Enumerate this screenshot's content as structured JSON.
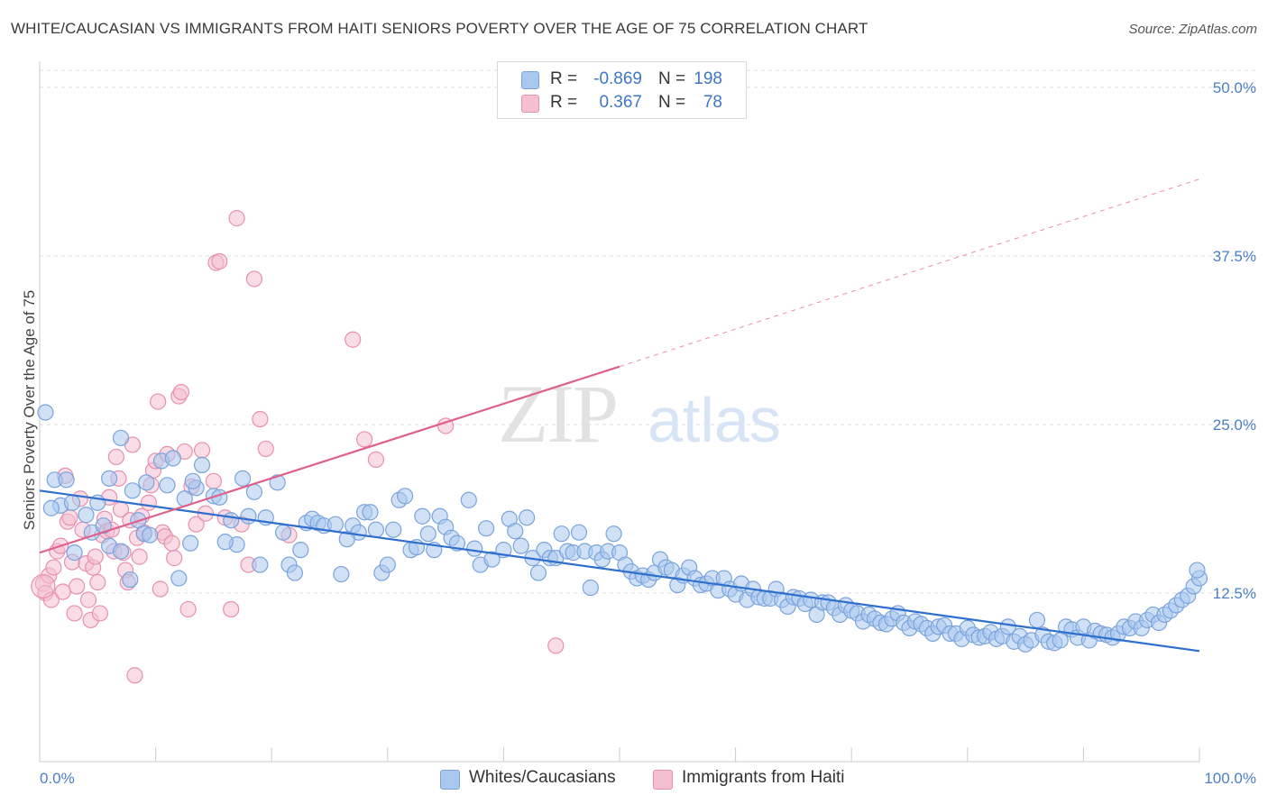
{
  "title": "WHITE/CAUCASIAN VS IMMIGRANTS FROM HAITI SENIORS POVERTY OVER THE AGE OF 75 CORRELATION CHART",
  "source": "Source: ZipAtlas.com",
  "watermark": {
    "zip": "ZIP",
    "atlas": "atlas"
  },
  "colors": {
    "blue_fill": "#aac8ef",
    "blue_stroke": "#7aa3dc",
    "blue_line": "#2e6fce",
    "pink_fill": "#f4bfd1",
    "pink_stroke": "#e890ae",
    "pink_line": "#e0608c",
    "tick_text": "#4a7fc8",
    "grid": "#dddddd"
  },
  "legend": {
    "rows": [
      {
        "r_label": "R =",
        "r_value": "-0.869",
        "n_label": "N =",
        "n_value": "198"
      },
      {
        "r_label": "R =",
        "r_value": "0.367",
        "n_label": "N =",
        "n_value": "78"
      }
    ]
  },
  "bottom_legend": {
    "series1": "Whites/Caucasians",
    "series2": "Immigrants from Haiti"
  },
  "chart_data": {
    "type": "scatter",
    "title": "WHITE/CAUCASIAN VS IMMIGRANTS FROM HAITI SENIORS POVERTY OVER THE AGE OF 75 CORRELATION CHART",
    "xlabel": "",
    "ylabel": "Seniors Poverty Over the Age of 75",
    "xlim": [
      0,
      100
    ],
    "ylim": [
      0,
      50
    ],
    "x_tick_labels": [
      "0.0%",
      "100.0%"
    ],
    "y_ticks": [
      12.5,
      25.0,
      37.5,
      50.0
    ],
    "y_tick_labels": [
      "12.5%",
      "25.0%",
      "37.5%",
      "50.0%"
    ],
    "grid": true,
    "series": [
      {
        "name": "Whites/Caucasians",
        "r": -0.869,
        "n": 198,
        "trend": {
          "x0": 0,
          "y0": 20.1,
          "x1": 100,
          "y1": 8.2
        },
        "points": [
          [
            0.5,
            25.9
          ],
          [
            1.3,
            20.9
          ],
          [
            2.3,
            20.9
          ],
          [
            1.8,
            19.0
          ],
          [
            2.8,
            19.2
          ],
          [
            4.0,
            18.3
          ],
          [
            3.0,
            15.5
          ],
          [
            4.5,
            17.0
          ],
          [
            5.5,
            17.5
          ],
          [
            6.0,
            16.0
          ],
          [
            7.0,
            15.6
          ],
          [
            5.0,
            19.2
          ],
          [
            6.0,
            21.0
          ],
          [
            7.0,
            24.0
          ],
          [
            8.0,
            20.1
          ],
          [
            8.5,
            17.9
          ],
          [
            9.0,
            16.9
          ],
          [
            7.8,
            13.5
          ],
          [
            9.5,
            16.8
          ],
          [
            10.5,
            22.3
          ],
          [
            11.0,
            20.5
          ],
          [
            11.5,
            22.5
          ],
          [
            12.0,
            13.6
          ],
          [
            12.5,
            19.5
          ],
          [
            13.0,
            16.2
          ],
          [
            13.5,
            20.3
          ],
          [
            13.2,
            20.8
          ],
          [
            14.0,
            22.0
          ],
          [
            15.0,
            19.7
          ],
          [
            15.5,
            19.6
          ],
          [
            16.5,
            17.9
          ],
          [
            17.0,
            16.1
          ],
          [
            17.5,
            21.0
          ],
          [
            18.0,
            18.2
          ],
          [
            18.5,
            20.0
          ],
          [
            19.0,
            14.6
          ],
          [
            19.5,
            18.1
          ],
          [
            20.5,
            20.7
          ],
          [
            21.0,
            17.0
          ],
          [
            21.5,
            14.6
          ],
          [
            22.0,
            14.0
          ],
          [
            22.5,
            15.7
          ],
          [
            23.0,
            17.7
          ],
          [
            23.5,
            18.0
          ],
          [
            24.0,
            17.7
          ],
          [
            24.5,
            17.5
          ],
          [
            25.5,
            17.6
          ],
          [
            26.0,
            13.9
          ],
          [
            27.0,
            17.5
          ],
          [
            27.5,
            17.0
          ],
          [
            28.0,
            18.5
          ],
          [
            28.5,
            18.5
          ],
          [
            29.0,
            17.2
          ],
          [
            29.5,
            14.0
          ],
          [
            30.0,
            14.6
          ],
          [
            30.5,
            17.2
          ],
          [
            31.0,
            19.4
          ],
          [
            31.5,
            19.7
          ],
          [
            32.0,
            15.7
          ],
          [
            32.5,
            15.9
          ],
          [
            33.0,
            18.2
          ],
          [
            33.5,
            16.9
          ],
          [
            34.0,
            15.7
          ],
          [
            34.5,
            18.2
          ],
          [
            35.0,
            17.4
          ],
          [
            35.5,
            16.6
          ],
          [
            36.0,
            16.2
          ],
          [
            37.0,
            19.4
          ],
          [
            37.5,
            15.8
          ],
          [
            38.0,
            14.6
          ],
          [
            38.5,
            17.3
          ],
          [
            39.0,
            15.0
          ],
          [
            40.0,
            15.7
          ],
          [
            40.5,
            18.0
          ],
          [
            41.0,
            17.1
          ],
          [
            41.5,
            16.0
          ],
          [
            42.0,
            18.1
          ],
          [
            42.5,
            15.1
          ],
          [
            43.0,
            14.0
          ],
          [
            43.5,
            15.7
          ],
          [
            44.0,
            15.1
          ],
          [
            44.5,
            15.1
          ],
          [
            45.0,
            16.9
          ],
          [
            45.5,
            15.6
          ],
          [
            46.0,
            15.5
          ],
          [
            46.5,
            17.0
          ],
          [
            47.0,
            15.6
          ],
          [
            47.5,
            12.9
          ],
          [
            48.0,
            15.5
          ],
          [
            48.5,
            15.0
          ],
          [
            49.0,
            15.6
          ],
          [
            49.5,
            16.9
          ],
          [
            50.0,
            15.5
          ],
          [
            50.5,
            14.6
          ],
          [
            51.0,
            14.1
          ],
          [
            51.5,
            13.6
          ],
          [
            52.0,
            13.8
          ],
          [
            52.5,
            13.5
          ],
          [
            53.0,
            14.0
          ],
          [
            53.5,
            15.0
          ],
          [
            54.0,
            14.4
          ],
          [
            54.5,
            14.2
          ],
          [
            55.0,
            13.1
          ],
          [
            55.5,
            13.8
          ],
          [
            56.0,
            14.4
          ],
          [
            56.5,
            13.6
          ],
          [
            57.0,
            13.1
          ],
          [
            57.5,
            13.2
          ],
          [
            58.0,
            13.6
          ],
          [
            58.5,
            12.7
          ],
          [
            59.0,
            13.6
          ],
          [
            59.5,
            12.8
          ],
          [
            60.0,
            12.4
          ],
          [
            60.5,
            13.2
          ],
          [
            61.0,
            12.0
          ],
          [
            61.5,
            12.8
          ],
          [
            62.0,
            12.2
          ],
          [
            62.5,
            12.1
          ],
          [
            63.0,
            12.1
          ],
          [
            63.5,
            12.8
          ],
          [
            64.0,
            12.0
          ],
          [
            64.5,
            11.5
          ],
          [
            65.0,
            12.2
          ],
          [
            65.5,
            12.1
          ],
          [
            66.0,
            11.7
          ],
          [
            66.5,
            12.0
          ],
          [
            67.0,
            10.9
          ],
          [
            67.5,
            11.8
          ],
          [
            68.0,
            11.8
          ],
          [
            68.5,
            11.4
          ],
          [
            69.0,
            10.9
          ],
          [
            69.5,
            11.6
          ],
          [
            70.0,
            11.2
          ],
          [
            70.5,
            11.0
          ],
          [
            71.0,
            10.4
          ],
          [
            71.5,
            10.9
          ],
          [
            72.0,
            10.6
          ],
          [
            72.5,
            10.3
          ],
          [
            73.0,
            10.2
          ],
          [
            73.5,
            10.6
          ],
          [
            74.0,
            11.0
          ],
          [
            74.5,
            10.3
          ],
          [
            75.0,
            9.9
          ],
          [
            75.5,
            10.4
          ],
          [
            76.0,
            10.2
          ],
          [
            76.5,
            9.9
          ],
          [
            77.0,
            9.5
          ],
          [
            77.5,
            10.0
          ],
          [
            78.0,
            10.1
          ],
          [
            78.5,
            9.5
          ],
          [
            79.0,
            9.5
          ],
          [
            79.5,
            9.1
          ],
          [
            80.0,
            9.9
          ],
          [
            80.5,
            9.4
          ],
          [
            81.0,
            9.2
          ],
          [
            81.5,
            9.3
          ],
          [
            82.0,
            9.6
          ],
          [
            82.5,
            9.1
          ],
          [
            83.0,
            9.3
          ],
          [
            83.5,
            10.0
          ],
          [
            84.0,
            8.9
          ],
          [
            84.5,
            9.3
          ],
          [
            85.0,
            8.7
          ],
          [
            85.5,
            9.0
          ],
          [
            86.0,
            10.5
          ],
          [
            86.5,
            9.4
          ],
          [
            87.0,
            8.9
          ],
          [
            87.5,
            8.8
          ],
          [
            88.0,
            9.0
          ],
          [
            88.5,
            10.0
          ],
          [
            89.0,
            9.8
          ],
          [
            89.5,
            9.2
          ],
          [
            90.0,
            10.0
          ],
          [
            90.5,
            9.0
          ],
          [
            91.0,
            9.7
          ],
          [
            91.5,
            9.5
          ],
          [
            92.0,
            9.4
          ],
          [
            92.5,
            9.2
          ],
          [
            93.0,
            9.5
          ],
          [
            93.5,
            10.0
          ],
          [
            94.0,
            9.9
          ],
          [
            94.5,
            10.4
          ],
          [
            95.0,
            9.9
          ],
          [
            95.5,
            10.5
          ],
          [
            96.0,
            10.9
          ],
          [
            96.5,
            10.3
          ],
          [
            97.0,
            10.9
          ],
          [
            97.5,
            11.2
          ],
          [
            98.0,
            11.6
          ],
          [
            98.5,
            12.0
          ],
          [
            99.0,
            12.3
          ],
          [
            99.5,
            13.0
          ],
          [
            100.0,
            13.6
          ],
          [
            99.8,
            14.2
          ],
          [
            1.0,
            18.8
          ],
          [
            9.2,
            20.7
          ],
          [
            16.0,
            16.3
          ],
          [
            26.5,
            16.5
          ]
        ]
      },
      {
        "name": "Immigrants from Haiti",
        "r": 0.367,
        "n": 78,
        "trend": {
          "x0": 0,
          "y0": 15.5,
          "x1": 50,
          "y1": 29.3,
          "dash_x1": 100,
          "dash_y1": 43.2
        },
        "points": [
          [
            0.3,
            13.2
          ],
          [
            0.5,
            12.5
          ],
          [
            0.8,
            13.8
          ],
          [
            1.0,
            12.0
          ],
          [
            1.2,
            14.4
          ],
          [
            1.5,
            15.6
          ],
          [
            1.8,
            16.0
          ],
          [
            2.0,
            12.6
          ],
          [
            2.2,
            21.2
          ],
          [
            2.4,
            17.8
          ],
          [
            2.6,
            18.1
          ],
          [
            2.8,
            14.8
          ],
          [
            3.0,
            11.0
          ],
          [
            3.2,
            13.0
          ],
          [
            3.5,
            19.5
          ],
          [
            3.7,
            17.2
          ],
          [
            4.0,
            14.7
          ],
          [
            4.2,
            12.0
          ],
          [
            4.4,
            10.5
          ],
          [
            4.6,
            14.4
          ],
          [
            4.8,
            15.2
          ],
          [
            5.0,
            13.3
          ],
          [
            5.2,
            11.0
          ],
          [
            5.4,
            16.8
          ],
          [
            5.6,
            18.0
          ],
          [
            5.8,
            17.1
          ],
          [
            6.0,
            19.6
          ],
          [
            6.2,
            17.2
          ],
          [
            6.4,
            15.6
          ],
          [
            6.6,
            22.6
          ],
          [
            6.8,
            21.0
          ],
          [
            7.0,
            18.7
          ],
          [
            7.2,
            15.5
          ],
          [
            7.4,
            14.2
          ],
          [
            7.6,
            13.3
          ],
          [
            7.8,
            17.9
          ],
          [
            8.0,
            23.5
          ],
          [
            8.2,
            6.4
          ],
          [
            8.4,
            16.6
          ],
          [
            8.6,
            15.2
          ],
          [
            8.8,
            18.2
          ],
          [
            9.0,
            17.0
          ],
          [
            9.4,
            19.2
          ],
          [
            9.6,
            20.5
          ],
          [
            9.8,
            21.6
          ],
          [
            10.0,
            22.3
          ],
          [
            10.2,
            26.7
          ],
          [
            10.4,
            12.8
          ],
          [
            10.6,
            17.0
          ],
          [
            10.8,
            16.7
          ],
          [
            11.0,
            22.8
          ],
          [
            11.4,
            16.2
          ],
          [
            11.6,
            15.1
          ],
          [
            12.0,
            27.1
          ],
          [
            12.2,
            27.4
          ],
          [
            12.5,
            23.0
          ],
          [
            12.8,
            11.3
          ],
          [
            13.1,
            20.4
          ],
          [
            13.5,
            17.6
          ],
          [
            14.0,
            23.1
          ],
          [
            14.3,
            18.4
          ],
          [
            15.0,
            20.8
          ],
          [
            15.2,
            37.0
          ],
          [
            15.5,
            37.1
          ],
          [
            16.0,
            18.1
          ],
          [
            16.5,
            11.3
          ],
          [
            17.0,
            40.3
          ],
          [
            17.4,
            17.6
          ],
          [
            18.0,
            14.6
          ],
          [
            18.5,
            35.8
          ],
          [
            19.0,
            25.4
          ],
          [
            19.5,
            23.2
          ],
          [
            27.0,
            31.3
          ],
          [
            28.0,
            23.9
          ],
          [
            29.0,
            22.4
          ],
          [
            35.0,
            24.9
          ],
          [
            44.5,
            8.6
          ],
          [
            21.5,
            16.8
          ]
        ]
      }
    ]
  }
}
